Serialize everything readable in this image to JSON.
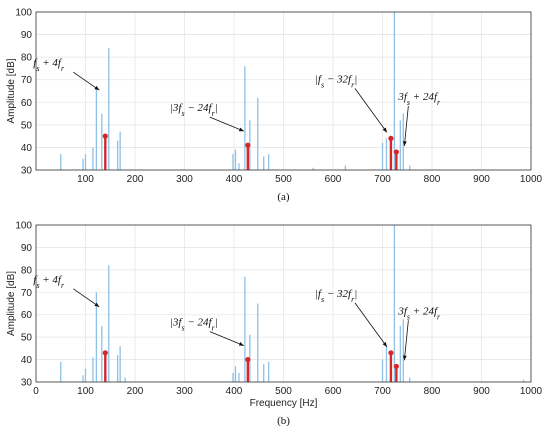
{
  "chart_data": [
    {
      "type": "bar",
      "panel_label": "(a)",
      "xlabel": "",
      "ylabel": "Amplitude [dB]",
      "xlim": [
        0,
        1000
      ],
      "ylim": [
        30,
        100
      ],
      "xticks": [
        "100",
        "200",
        "300",
        "400",
        "500",
        "600",
        "700",
        "800",
        "900",
        "1000"
      ],
      "yticks": [
        "30",
        "40",
        "50",
        "60",
        "70",
        "80",
        "90",
        "100"
      ],
      "grid": true,
      "spectrum": [
        [
          50,
          37
        ],
        [
          95,
          35
        ],
        [
          100,
          37
        ],
        [
          115,
          40
        ],
        [
          122,
          66
        ],
        [
          133,
          55
        ],
        [
          147,
          84
        ],
        [
          165,
          43
        ],
        [
          170,
          47
        ],
        [
          398,
          37
        ],
        [
          403,
          39
        ],
        [
          410,
          33
        ],
        [
          422,
          76
        ],
        [
          432,
          52
        ],
        [
          448,
          62
        ],
        [
          460,
          36
        ],
        [
          470,
          37
        ],
        [
          560,
          31
        ],
        [
          625,
          32
        ],
        [
          700,
          42
        ],
        [
          708,
          44
        ],
        [
          718,
          35
        ],
        [
          724,
          100
        ],
        [
          736,
          52
        ],
        [
          742,
          55
        ],
        [
          755,
          32
        ]
      ],
      "highlight_series": [
        {
          "label": "f_s + 4f_r",
          "x": 140,
          "y": 45
        },
        {
          "label": "|3f_s − 24f_r|",
          "x": 428,
          "y": 41
        },
        {
          "label": "|f_s − 32f_r|",
          "x": 717,
          "y": 44
        },
        {
          "label": "3f_s + 24f_r",
          "x": 728,
          "y": 38
        }
      ],
      "annotations": [
        "f_s + 4f_r",
        "|3f_s − 24f_r|",
        "|f_s − 32f_r|",
        "3f_s + 24f_r"
      ]
    },
    {
      "type": "bar",
      "panel_label": "(b)",
      "xlabel": "Frequency [Hz]",
      "ylabel": "Amplitude [dB]",
      "xlim": [
        0,
        1000
      ],
      "ylim": [
        30,
        100
      ],
      "xticks": [
        "0",
        "100",
        "200",
        "300",
        "400",
        "500",
        "600",
        "700",
        "800",
        "900",
        "1000"
      ],
      "yticks": [
        "30",
        "40",
        "50",
        "60",
        "70",
        "80",
        "90",
        "100"
      ],
      "grid": true,
      "spectrum": [
        [
          50,
          39
        ],
        [
          95,
          33
        ],
        [
          100,
          36
        ],
        [
          115,
          41
        ],
        [
          122,
          70
        ],
        [
          133,
          55
        ],
        [
          147,
          82
        ],
        [
          165,
          42
        ],
        [
          170,
          46
        ],
        [
          180,
          32
        ],
        [
          398,
          34
        ],
        [
          403,
          37
        ],
        [
          410,
          34
        ],
        [
          422,
          77
        ],
        [
          432,
          51
        ],
        [
          448,
          65
        ],
        [
          460,
          38
        ],
        [
          470,
          39
        ],
        [
          700,
          40
        ],
        [
          708,
          46
        ],
        [
          718,
          35
        ],
        [
          724,
          100
        ],
        [
          736,
          55
        ],
        [
          742,
          58
        ],
        [
          755,
          32
        ],
        [
          985,
          31
        ]
      ],
      "highlight_series": [
        {
          "label": "f_s + 4f_r",
          "x": 140,
          "y": 43
        },
        {
          "label": "|3f_s − 24f_r|",
          "x": 428,
          "y": 40
        },
        {
          "label": "|f_s − 32f_r|",
          "x": 717,
          "y": 43
        },
        {
          "label": "3f_s + 24f_r",
          "x": 728,
          "y": 37
        }
      ],
      "annotations": [
        "f_s + 4f_r",
        "|3f_s − 24f_r|",
        "|f_s − 32f_r|",
        "3f_s + 24f_r"
      ]
    }
  ],
  "colors": {
    "spectrum": "#8ec1e6",
    "highlight": "#d62728",
    "grid": "#e6e6e6",
    "axis": "#333333"
  }
}
